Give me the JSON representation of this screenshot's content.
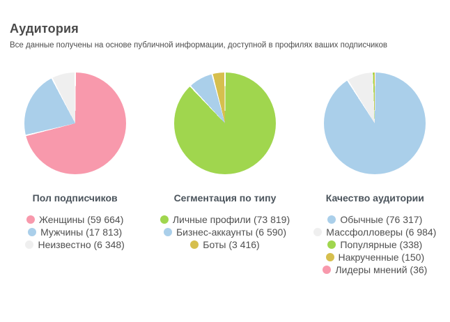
{
  "header": {
    "title": "Аудитория",
    "subtitle": "Все данные получены на основе публичной информации, доступной в профилях ваших подписчиков"
  },
  "chart_data": [
    {
      "type": "pie",
      "title": "Пол подписчиков",
      "categories": [
        "Женщины",
        "Мужчины",
        "Неизвестно"
      ],
      "values": [
        59664,
        17813,
        6348
      ],
      "colors": [
        "#f899ac",
        "#aacfea",
        "#efefef"
      ],
      "legend": [
        "Женщины (59 664)",
        "Мужчины (17 813)",
        "Неизвестно (6 348)"
      ],
      "legend_position": "bottom",
      "start_angle_deg": 0,
      "direction": "clockwise"
    },
    {
      "type": "pie",
      "title": "Сегментация по типу",
      "categories": [
        "Личные профили",
        "Бизнес-аккаунты",
        "Боты"
      ],
      "values": [
        73819,
        6590,
        3416
      ],
      "colors": [
        "#a0d64e",
        "#aacfea",
        "#d6bf4e"
      ],
      "legend": [
        "Личные профили (73 819)",
        "Бизнес-аккаунты (6 590)",
        "Боты (3 416)"
      ],
      "legend_position": "bottom",
      "start_angle_deg": 0,
      "direction": "clockwise"
    },
    {
      "type": "pie",
      "title": "Качество аудитории",
      "categories": [
        "Обычные",
        "Массфолловеры",
        "Популярные",
        "Накрученные",
        "Лидеры мнений"
      ],
      "values": [
        76317,
        6984,
        338,
        150,
        36
      ],
      "colors": [
        "#aacfea",
        "#efefef",
        "#a0d64e",
        "#d6bf4e",
        "#f899ac"
      ],
      "legend": [
        "Обычные (76 317)",
        "Массфолловеры (6 984)",
        "Популярные (338)",
        "Накрученные (150)",
        "Лидеры мнений (36)"
      ],
      "legend_position": "bottom",
      "start_angle_deg": 0,
      "direction": "clockwise"
    }
  ]
}
